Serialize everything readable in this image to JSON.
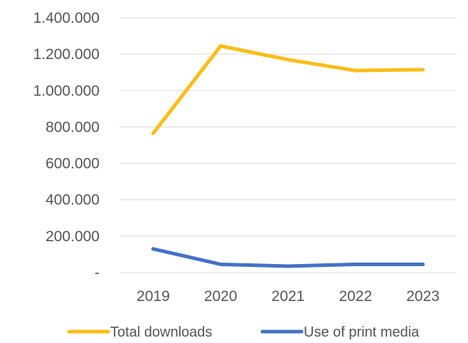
{
  "chart_data": {
    "type": "line",
    "categories": [
      "2019",
      "2020",
      "2021",
      "2022",
      "2023"
    ],
    "y_tick_labels": [
      "-",
      "200.000",
      "400.000",
      "600.000",
      "800.000",
      "1.000.000",
      "1.200.000",
      "1.400.000"
    ],
    "ylim": [
      0,
      1400000
    ],
    "grid": true,
    "legend_position": "bottom",
    "series": [
      {
        "name": "Total downloads",
        "color": "#fbbd18",
        "values": [
          765000,
          1245000,
          1170000,
          1110000,
          1115000
        ]
      },
      {
        "name": "Use of print media",
        "color": "#4472c4",
        "values": [
          130000,
          45000,
          35000,
          45000,
          45000
        ]
      }
    ]
  }
}
